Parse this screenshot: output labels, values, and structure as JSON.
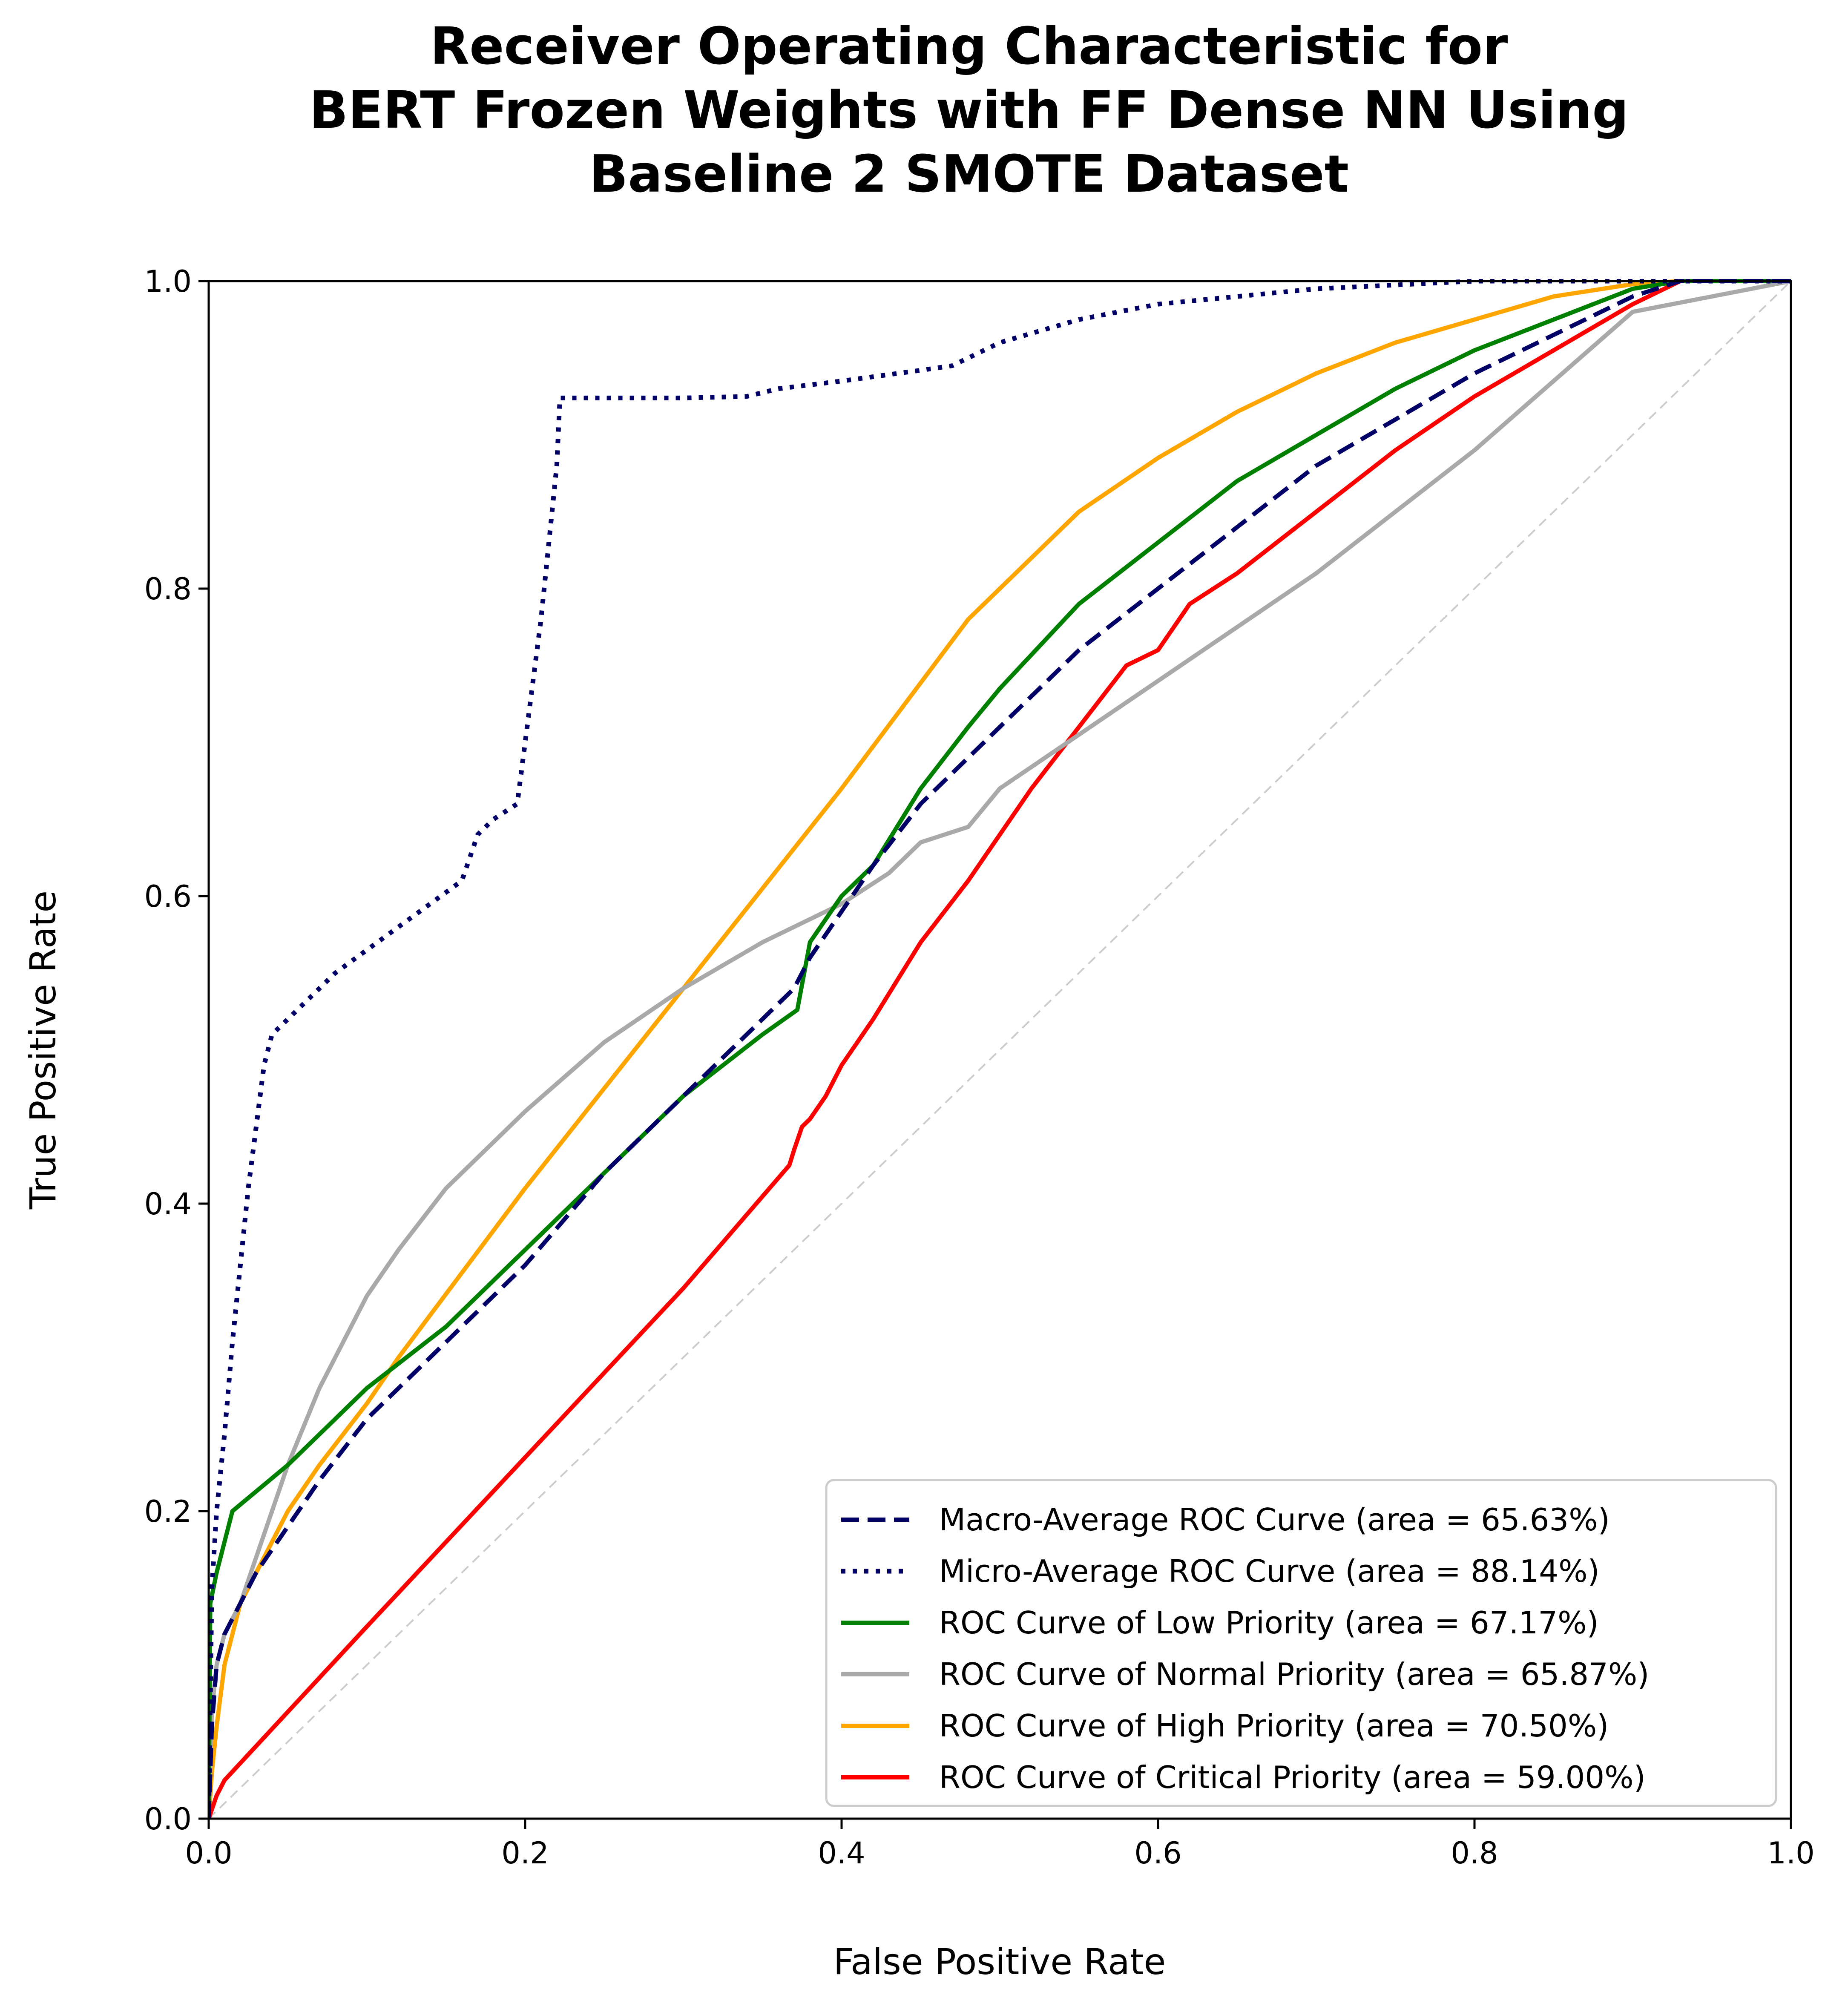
{
  "chart_data": {
    "type": "line",
    "title": [
      "Receiver Operating Characteristic for",
      "BERT Frozen Weights with FF Dense NN Using",
      "Baseline 2 SMOTE Dataset"
    ],
    "xlabel": "False Positive Rate",
    "ylabel": "True Positive Rate",
    "xlim": [
      0,
      1
    ],
    "ylim": [
      0,
      1
    ],
    "xticks": [
      "0.0",
      "0.2",
      "0.4",
      "0.6",
      "0.8",
      "1.0"
    ],
    "yticks": [
      "0.0",
      "0.2",
      "0.4",
      "0.6",
      "0.8",
      "1.0"
    ],
    "grid": false,
    "legend_position": "lower-right",
    "reference_line": {
      "x": [
        0,
        1
      ],
      "y": [
        0,
        1
      ],
      "color": "#cccccc",
      "style": "dashed"
    },
    "series": [
      {
        "name": "Macro-Average ROC Curve (area = 65.63%)",
        "color": "#000066",
        "style": "dashed",
        "x": [
          0.0,
          0.002,
          0.005,
          0.01,
          0.02,
          0.03,
          0.05,
          0.07,
          0.1,
          0.15,
          0.2,
          0.25,
          0.3,
          0.35,
          0.37,
          0.38,
          0.4,
          0.42,
          0.45,
          0.48,
          0.5,
          0.55,
          0.6,
          0.65,
          0.7,
          0.75,
          0.8,
          0.85,
          0.9,
          0.93,
          1.0
        ],
        "y": [
          0.0,
          0.06,
          0.1,
          0.12,
          0.14,
          0.16,
          0.19,
          0.22,
          0.26,
          0.31,
          0.36,
          0.42,
          0.47,
          0.52,
          0.54,
          0.56,
          0.59,
          0.62,
          0.66,
          0.69,
          0.71,
          0.76,
          0.8,
          0.84,
          0.88,
          0.91,
          0.94,
          0.965,
          0.99,
          1.0,
          1.0
        ]
      },
      {
        "name": "Micro-Average ROC Curve (area = 88.14%)",
        "color": "#000066",
        "style": "dotted",
        "x": [
          0.0,
          0.002,
          0.005,
          0.01,
          0.015,
          0.02,
          0.025,
          0.03,
          0.035,
          0.04,
          0.05,
          0.06,
          0.08,
          0.1,
          0.12,
          0.14,
          0.16,
          0.17,
          0.18,
          0.195,
          0.2,
          0.21,
          0.22,
          0.222,
          0.3,
          0.34,
          0.36,
          0.4,
          0.45,
          0.47,
          0.48,
          0.5,
          0.55,
          0.6,
          0.65,
          0.7,
          0.8,
          0.9,
          1.0
        ],
        "y": [
          0.0,
          0.15,
          0.2,
          0.25,
          0.31,
          0.36,
          0.41,
          0.45,
          0.49,
          0.51,
          0.52,
          0.53,
          0.55,
          0.565,
          0.58,
          0.595,
          0.61,
          0.64,
          0.65,
          0.66,
          0.7,
          0.78,
          0.88,
          0.924,
          0.924,
          0.925,
          0.93,
          0.935,
          0.942,
          0.945,
          0.95,
          0.96,
          0.975,
          0.985,
          0.99,
          0.995,
          1.0,
          1.0,
          1.0
        ]
      },
      {
        "name": "ROC Curve of Low Priority (area = 67.17%)",
        "color": "#008000",
        "style": "solid",
        "x": [
          0.0,
          0.001,
          0.005,
          0.01,
          0.015,
          0.05,
          0.1,
          0.15,
          0.2,
          0.25,
          0.3,
          0.35,
          0.372,
          0.38,
          0.4,
          0.42,
          0.45,
          0.48,
          0.5,
          0.55,
          0.6,
          0.65,
          0.7,
          0.75,
          0.8,
          0.85,
          0.9,
          0.93,
          1.0
        ],
        "y": [
          0.0,
          0.14,
          0.16,
          0.18,
          0.2,
          0.23,
          0.28,
          0.32,
          0.37,
          0.42,
          0.47,
          0.51,
          0.526,
          0.57,
          0.6,
          0.62,
          0.67,
          0.71,
          0.735,
          0.79,
          0.83,
          0.87,
          0.9,
          0.93,
          0.955,
          0.975,
          0.995,
          1.0,
          1.0
        ]
      },
      {
        "name": "ROC Curve of Normal Priority (area = 65.87%)",
        "color": "#a9a9a9",
        "style": "solid",
        "x": [
          0.0,
          0.002,
          0.005,
          0.01,
          0.02,
          0.03,
          0.05,
          0.07,
          0.1,
          0.12,
          0.15,
          0.2,
          0.25,
          0.3,
          0.35,
          0.4,
          0.43,
          0.45,
          0.48,
          0.5,
          0.6,
          0.7,
          0.8,
          0.9,
          0.95,
          1.0
        ],
        "y": [
          0.0,
          0.07,
          0.1,
          0.12,
          0.14,
          0.17,
          0.23,
          0.28,
          0.34,
          0.37,
          0.41,
          0.46,
          0.505,
          0.54,
          0.57,
          0.595,
          0.615,
          0.635,
          0.645,
          0.67,
          0.74,
          0.81,
          0.89,
          0.98,
          0.99,
          1.0
        ]
      },
      {
        "name": "ROC Curve of High Priority (area = 70.50%)",
        "color": "#ffa500",
        "style": "solid",
        "x": [
          0.0,
          0.002,
          0.005,
          0.01,
          0.02,
          0.03,
          0.05,
          0.07,
          0.1,
          0.12,
          0.2,
          0.3,
          0.4,
          0.48,
          0.5,
          0.55,
          0.6,
          0.65,
          0.7,
          0.75,
          0.8,
          0.85,
          0.9,
          0.93,
          1.0
        ],
        "y": [
          0.0,
          0.03,
          0.06,
          0.1,
          0.14,
          0.16,
          0.2,
          0.23,
          0.27,
          0.3,
          0.41,
          0.54,
          0.67,
          0.78,
          0.8,
          0.85,
          0.885,
          0.915,
          0.94,
          0.96,
          0.975,
          0.99,
          0.998,
          1.0,
          1.0
        ]
      },
      {
        "name": "ROC Curve of Critical Priority (area = 59.00%)",
        "color": "#ff0000",
        "style": "solid",
        "x": [
          0.0,
          0.005,
          0.01,
          0.1,
          0.2,
          0.3,
          0.367,
          0.37,
          0.375,
          0.38,
          0.39,
          0.4,
          0.42,
          0.45,
          0.48,
          0.5,
          0.52,
          0.55,
          0.58,
          0.6,
          0.62,
          0.65,
          0.7,
          0.75,
          0.8,
          0.85,
          0.9,
          0.93,
          1.0
        ],
        "y": [
          0.0,
          0.015,
          0.025,
          0.125,
          0.235,
          0.345,
          0.425,
          0.435,
          0.45,
          0.455,
          0.47,
          0.49,
          0.52,
          0.57,
          0.61,
          0.64,
          0.67,
          0.71,
          0.75,
          0.76,
          0.79,
          0.81,
          0.85,
          0.89,
          0.925,
          0.955,
          0.985,
          1.0,
          1.0
        ]
      }
    ]
  }
}
